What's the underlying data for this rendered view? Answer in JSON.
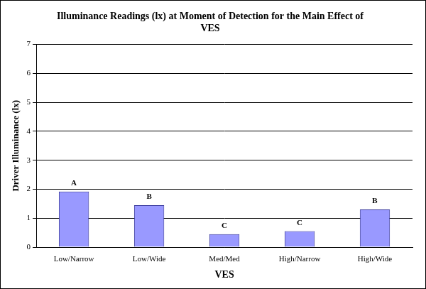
{
  "chart_data": {
    "type": "bar",
    "title": "Illuminance Readings (lx) at Moment of Detection for the Main Effect of VES",
    "x_label": "VES",
    "y_label": "Driver Illuminance (lx)",
    "categories": [
      "Low/Narrow",
      "Low/Wide",
      "Med/Med",
      "High/Narrow",
      "High/Wide"
    ],
    "values": [
      1.92,
      1.45,
      0.45,
      0.55,
      1.3
    ],
    "annotations": [
      "A",
      "B",
      "C",
      "C",
      "B"
    ],
    "color": "#9999ff",
    "ylim": [
      0,
      7
    ],
    "yticks": [
      0,
      1,
      2,
      3,
      4,
      5,
      6,
      7
    ],
    "grid": true
  }
}
